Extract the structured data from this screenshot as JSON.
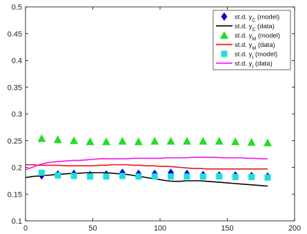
{
  "chart_data": {
    "type": "line",
    "title": "",
    "xlabel": "",
    "ylabel": "",
    "xlim": [
      0,
      200
    ],
    "ylim": [
      0.1,
      0.5
    ],
    "xticks": [
      0,
      50,
      100,
      150,
      200
    ],
    "yticks": [
      0.1,
      0.15,
      0.2,
      0.25,
      0.3,
      0.35,
      0.4,
      0.45,
      0.5
    ],
    "xtick_labels": [
      "0",
      "50",
      "100",
      "150",
      "200"
    ],
    "ytick_labels": [
      "0.1",
      "0.15",
      "0.2",
      "0.25",
      "0.3",
      "0.35",
      "0.4",
      "0.45",
      "0.5"
    ],
    "grid": false,
    "legend_position": "top-right",
    "series": [
      {
        "name": "std_yC_model",
        "legend_label": {
          "pre": "st.d. y",
          "sub": "C",
          "post": " (model)"
        },
        "kind": "marker",
        "marker": "diamond",
        "color": "#0000dd",
        "x": [
          12,
          24,
          36,
          48,
          60,
          72,
          84,
          96,
          108,
          120,
          132,
          144,
          156,
          168,
          180
        ],
        "y": [
          0.185,
          0.187,
          0.188,
          0.186,
          0.187,
          0.19,
          0.188,
          0.188,
          0.19,
          0.188,
          0.186,
          0.185,
          0.185,
          0.184,
          0.183
        ]
      },
      {
        "name": "std_yC_data",
        "legend_label": {
          "pre": "st.d. y",
          "sub": "C",
          "post": " (data)"
        },
        "kind": "line",
        "color": "#000000",
        "x": [
          0,
          5,
          10,
          15,
          20,
          25,
          30,
          35,
          40,
          45,
          50,
          55,
          60,
          65,
          70,
          75,
          80,
          85,
          90,
          95,
          100,
          105,
          110,
          115,
          120,
          125,
          130,
          135,
          140,
          145,
          150,
          155,
          160,
          165,
          170,
          175,
          180
        ],
        "y": [
          0.181,
          0.183,
          0.184,
          0.185,
          0.186,
          0.187,
          0.188,
          0.189,
          0.189,
          0.19,
          0.19,
          0.19,
          0.19,
          0.189,
          0.188,
          0.187,
          0.185,
          0.183,
          0.181,
          0.179,
          0.177,
          0.175,
          0.174,
          0.174,
          0.175,
          0.175,
          0.175,
          0.174,
          0.173,
          0.172,
          0.171,
          0.17,
          0.169,
          0.168,
          0.167,
          0.166,
          0.165
        ]
      },
      {
        "name": "std_yM_model",
        "legend_label": {
          "pre": "st.d. y",
          "sub": "M",
          "post": " (model)"
        },
        "kind": "marker",
        "marker": "triangle",
        "color": "#22dd22",
        "x": [
          12,
          24,
          36,
          48,
          60,
          72,
          84,
          96,
          108,
          120,
          132,
          144,
          156,
          168,
          180
        ],
        "y": [
          0.254,
          0.252,
          0.25,
          0.248,
          0.248,
          0.249,
          0.248,
          0.249,
          0.249,
          0.249,
          0.249,
          0.249,
          0.248,
          0.247,
          0.246
        ]
      },
      {
        "name": "std_yM_data",
        "legend_label": {
          "pre": "st.d. y",
          "sub": "M",
          "post": " (data)"
        },
        "kind": "line",
        "color": "#ee1111",
        "x": [
          0,
          5,
          10,
          15,
          20,
          25,
          30,
          35,
          40,
          45,
          50,
          55,
          60,
          65,
          70,
          75,
          80,
          85,
          90,
          95,
          100,
          105,
          110,
          115,
          120,
          125,
          130,
          135,
          140,
          145,
          150,
          155,
          160,
          165,
          170,
          175,
          180
        ],
        "y": [
          0.205,
          0.205,
          0.204,
          0.204,
          0.204,
          0.204,
          0.203,
          0.203,
          0.203,
          0.203,
          0.203,
          0.204,
          0.204,
          0.205,
          0.205,
          0.205,
          0.204,
          0.204,
          0.203,
          0.203,
          0.202,
          0.202,
          0.201,
          0.2,
          0.199,
          0.198,
          0.198,
          0.197,
          0.197,
          0.197,
          0.197,
          0.197,
          0.197,
          0.197,
          0.197,
          0.197,
          0.197
        ]
      },
      {
        "name": "std_yI_model",
        "legend_label": {
          "pre": "st.d. y",
          "sub": "I",
          "post": " (model)"
        },
        "kind": "marker",
        "marker": "square",
        "color": "#22dddd",
        "x": [
          12,
          24,
          36,
          48,
          60,
          72,
          84,
          96,
          108,
          120,
          132,
          144,
          156,
          168,
          180
        ],
        "y": [
          0.19,
          0.185,
          0.184,
          0.183,
          0.183,
          0.184,
          0.183,
          0.183,
          0.183,
          0.183,
          0.183,
          0.183,
          0.182,
          0.182,
          0.181
        ]
      },
      {
        "name": "std_yI_data",
        "legend_label": {
          "pre": "st.d. y",
          "sub": "I",
          "post": " (data)"
        },
        "kind": "line",
        "color": "#ee11ee",
        "x": [
          0,
          5,
          10,
          15,
          20,
          25,
          30,
          35,
          40,
          45,
          50,
          55,
          60,
          65,
          70,
          75,
          80,
          85,
          90,
          95,
          100,
          105,
          110,
          115,
          120,
          125,
          130,
          135,
          140,
          145,
          150,
          155,
          160,
          165,
          170,
          175,
          180
        ],
        "y": [
          0.196,
          0.2,
          0.205,
          0.208,
          0.21,
          0.211,
          0.212,
          0.213,
          0.213,
          0.214,
          0.215,
          0.216,
          0.216,
          0.216,
          0.216,
          0.216,
          0.217,
          0.217,
          0.217,
          0.217,
          0.217,
          0.218,
          0.218,
          0.218,
          0.218,
          0.219,
          0.219,
          0.219,
          0.219,
          0.218,
          0.218,
          0.218,
          0.218,
          0.217,
          0.217,
          0.216,
          0.216
        ]
      }
    ]
  }
}
